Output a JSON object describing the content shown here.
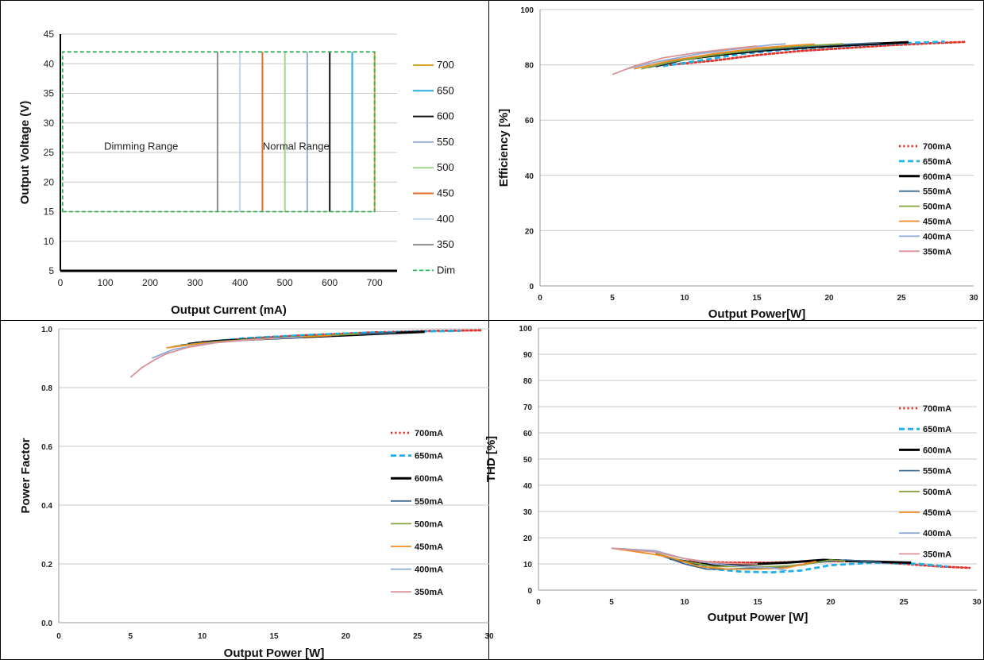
{
  "colors": {
    "700": "#e0342d",
    "650": "#1fb0e6",
    "600": "#000000",
    "550": "#3e6b8e",
    "500": "#86a23b",
    "450": "#f08c24",
    "400": "#8ea9d4",
    "350": "#d99498",
    "dim": "#2fb35a",
    "vline": {
      "700": "#d9a62b",
      "650": "#2aaee0",
      "600": "#111111",
      "550": "#9ab1d4",
      "500": "#9fd68f",
      "450": "#e2702a",
      "400": "#bcd6ee",
      "350": "#8c8c8c"
    }
  },
  "chart_data": [
    {
      "type": "line",
      "xlabel": "Output Current  (mA)",
      "ylabel": "Output Voltage  (V)",
      "xlim": [
        0,
        750
      ],
      "ylim": [
        5,
        45
      ],
      "xticks": [
        "0",
        "100",
        "200",
        "300",
        "400",
        "500",
        "600",
        "700"
      ],
      "yticks": [
        "5",
        "10",
        "15",
        "20",
        "25",
        "30",
        "35",
        "40",
        "45"
      ],
      "grid": "horizontal",
      "legend": "right",
      "regions": [
        {
          "label": "Dimming Range",
          "x": 180,
          "y": 25.5
        },
        {
          "label": "Normal Range",
          "x": 525,
          "y": 25.5
        }
      ],
      "series": [
        {
          "name": "700",
          "key": "700",
          "x": [
            700,
            700
          ],
          "y": [
            15,
            42
          ]
        },
        {
          "name": "650",
          "key": "650",
          "x": [
            650,
            650
          ],
          "y": [
            15,
            42
          ]
        },
        {
          "name": "600",
          "key": "600",
          "x": [
            600,
            600
          ],
          "y": [
            15,
            42
          ]
        },
        {
          "name": "550",
          "key": "550",
          "x": [
            550,
            550
          ],
          "y": [
            15,
            42
          ]
        },
        {
          "name": "500",
          "key": "500",
          "x": [
            500,
            500
          ],
          "y": [
            15,
            42
          ]
        },
        {
          "name": "450",
          "key": "450",
          "x": [
            450,
            450
          ],
          "y": [
            15,
            42
          ]
        },
        {
          "name": "400",
          "key": "400",
          "x": [
            400,
            400
          ],
          "y": [
            15,
            42
          ]
        },
        {
          "name": "350",
          "key": "350",
          "x": [
            350,
            350
          ],
          "y": [
            15,
            42
          ]
        },
        {
          "name": "Dim",
          "key": "dim",
          "dash": "dash",
          "x": [
            5,
            700,
            700,
            5,
            5
          ],
          "y": [
            15,
            15,
            42,
            42,
            15
          ]
        }
      ]
    },
    {
      "type": "line",
      "xlabel": "Output Power[W]",
      "ylabel": "Efficiency [%]",
      "xlim": [
        0,
        30
      ],
      "ylim": [
        0,
        100
      ],
      "xticks": [
        "0",
        "5",
        "10",
        "15",
        "20",
        "25",
        "30"
      ],
      "yticks": [
        "0",
        "20",
        "40",
        "60",
        "80",
        "100"
      ],
      "grid": "horizontal",
      "legend": "right",
      "series": [
        {
          "name": "700mA",
          "key": "700",
          "dash": "dot",
          "x": [
            9,
            12,
            15,
            18,
            21,
            24,
            27,
            29.5
          ],
          "y": [
            80,
            81.5,
            83.5,
            85,
            86,
            87,
            87.8,
            88.3
          ]
        },
        {
          "name": "650mA",
          "key": "650",
          "dash": "dash",
          "x": [
            8.5,
            11,
            14,
            17,
            20,
            23,
            26,
            28
          ],
          "y": [
            79.5,
            81.5,
            84,
            85.5,
            86.5,
            87.3,
            88,
            88.4
          ]
        },
        {
          "name": "600mA",
          "key": "600",
          "dash": "solid",
          "x": [
            8,
            10,
            13,
            16,
            19,
            22,
            25.5
          ],
          "y": [
            79.5,
            82,
            84,
            85.5,
            86.5,
            87.3,
            88.2
          ]
        },
        {
          "name": "550mA",
          "key": "550",
          "dash": "solid",
          "x": [
            7.5,
            10,
            13,
            16,
            19,
            21.5,
            23.5
          ],
          "y": [
            79,
            82,
            84.2,
            85.7,
            86.8,
            87.5,
            88
          ]
        },
        {
          "name": "500mA",
          "key": "500",
          "dash": "solid",
          "x": [
            7,
            9,
            12,
            15,
            18,
            21
          ],
          "y": [
            78.5,
            81,
            83.5,
            85.5,
            86.8,
            87.6
          ]
        },
        {
          "name": "450mA",
          "key": "450",
          "dash": "solid",
          "x": [
            6.5,
            9,
            12,
            15,
            17.5,
            19
          ],
          "y": [
            78.5,
            81.5,
            84,
            86,
            87,
            87.5
          ]
        },
        {
          "name": "400mA",
          "key": "400",
          "dash": "solid",
          "x": [
            6,
            8,
            11,
            14,
            16,
            17
          ],
          "y": [
            78.5,
            81,
            84,
            86,
            87.2,
            87.6
          ]
        },
        {
          "name": "350mA",
          "key": "350",
          "dash": "solid",
          "x": [
            5,
            6.5,
            8.5,
            11,
            13.5,
            15
          ],
          "y": [
            76.5,
            79.5,
            82.5,
            84.5,
            86,
            86.8
          ]
        }
      ]
    },
    {
      "type": "line",
      "xlabel": "Output Power [W]",
      "ylabel": "Power Factor",
      "xlim": [
        0,
        30
      ],
      "ylim": [
        0.0,
        1.0
      ],
      "xticks": [
        "0",
        "5",
        "10",
        "15",
        "20",
        "25",
        "30"
      ],
      "yticks": [
        "0.0",
        "0.2",
        "0.4",
        "0.6",
        "0.8",
        "1.0"
      ],
      "grid": "horizontal",
      "legend": "right",
      "series": [
        {
          "name": "700mA",
          "key": "700",
          "dash": "dot",
          "x": [
            10,
            14,
            18,
            22,
            26,
            29.5
          ],
          "y": [
            0.955,
            0.97,
            0.98,
            0.988,
            0.993,
            0.995
          ]
        },
        {
          "name": "650mA",
          "key": "650",
          "dash": "dash",
          "x": [
            9.5,
            13,
            17,
            21,
            25,
            28
          ],
          "y": [
            0.952,
            0.968,
            0.978,
            0.986,
            0.991,
            0.993
          ]
        },
        {
          "name": "600mA",
          "key": "600",
          "dash": "solid",
          "x": [
            9,
            11,
            14,
            17,
            20,
            23,
            25.5
          ],
          "y": [
            0.948,
            0.958,
            0.965,
            0.972,
            0.978,
            0.985,
            0.99
          ]
        },
        {
          "name": "550mA",
          "key": "550",
          "dash": "solid",
          "x": [
            8.5,
            11,
            14,
            17,
            20,
            23.5
          ],
          "y": [
            0.945,
            0.957,
            0.966,
            0.973,
            0.98,
            0.987
          ]
        },
        {
          "name": "500mA",
          "key": "500",
          "dash": "solid",
          "x": [
            8,
            10,
            13,
            16,
            19,
            21
          ],
          "y": [
            0.94,
            0.952,
            0.963,
            0.971,
            0.978,
            0.983
          ]
        },
        {
          "name": "450mA",
          "key": "450",
          "dash": "solid",
          "x": [
            7.5,
            10,
            13,
            16,
            19
          ],
          "y": [
            0.935,
            0.951,
            0.962,
            0.97,
            0.977
          ]
        },
        {
          "name": "400mA",
          "key": "400",
          "dash": "solid",
          "x": [
            6.5,
            8,
            10.5,
            13.5,
            17
          ],
          "y": [
            0.9,
            0.93,
            0.951,
            0.963,
            0.972
          ]
        },
        {
          "name": "350mA",
          "key": "350",
          "dash": "solid",
          "x": [
            5,
            5.8,
            6.7,
            7.5,
            9,
            11,
            13,
            15
          ],
          "y": [
            0.835,
            0.868,
            0.895,
            0.915,
            0.937,
            0.953,
            0.962,
            0.968
          ]
        }
      ]
    },
    {
      "type": "line",
      "xlabel": "Output Power [W]",
      "ylabel": "THD [%]",
      "xlim": [
        0,
        30
      ],
      "ylim": [
        0,
        100
      ],
      "xticks": [
        "0",
        "5",
        "10",
        "15",
        "20",
        "25",
        "30"
      ],
      "yticks": [
        "0",
        "10",
        "20",
        "30",
        "40",
        "50",
        "60",
        "70",
        "80",
        "90",
        "100"
      ],
      "grid": "horizontal",
      "legend": "right",
      "series": [
        {
          "name": "700mA",
          "key": "700",
          "dash": "dot",
          "x": [
            10,
            13,
            16,
            19,
            22,
            25,
            27.5,
            29.5
          ],
          "y": [
            11,
            10.5,
            10.5,
            11,
            11,
            10,
            9,
            8.5
          ]
        },
        {
          "name": "650mA",
          "key": "650",
          "dash": "dash",
          "x": [
            10,
            12,
            14,
            16,
            18,
            20,
            23,
            26,
            28
          ],
          "y": [
            11,
            8,
            7,
            6.8,
            7.5,
            9.5,
            10.5,
            10,
            9
          ]
        },
        {
          "name": "600mA",
          "key": "600",
          "dash": "solid",
          "x": [
            9,
            11,
            13,
            15,
            17,
            19.5,
            22,
            25.5
          ],
          "y": [
            12,
            10,
            9.5,
            10,
            10.5,
            11.5,
            11,
            10.5
          ]
        },
        {
          "name": "550mA",
          "key": "550",
          "dash": "solid",
          "x": [
            8.5,
            10,
            11.5,
            13,
            15,
            17,
            19,
            21,
            23.5
          ],
          "y": [
            13,
            10,
            8,
            8,
            8.5,
            9,
            10.5,
            11.5,
            10.5
          ]
        },
        {
          "name": "500mA",
          "key": "500",
          "dash": "solid",
          "x": [
            8,
            10,
            12,
            14,
            16,
            18,
            20,
            21
          ],
          "y": [
            14,
            11,
            9,
            9,
            9,
            9.5,
            11.5,
            11
          ]
        },
        {
          "name": "450mA",
          "key": "450",
          "dash": "solid",
          "x": [
            5,
            7.5,
            9,
            11,
            13,
            15,
            17,
            19
          ],
          "y": [
            16,
            14,
            12.5,
            9,
            8,
            8,
            8.5,
            11
          ]
        },
        {
          "name": "400mA",
          "key": "400",
          "dash": "solid",
          "x": [
            5,
            8,
            10,
            12,
            14,
            16,
            17
          ],
          "y": [
            16,
            15,
            12,
            10,
            9,
            8.5,
            7.5
          ]
        },
        {
          "name": "350mA",
          "key": "350",
          "dash": "solid",
          "x": [
            5,
            8,
            10,
            12,
            14,
            15
          ],
          "y": [
            16,
            14.5,
            12,
            10.5,
            10,
            10
          ]
        }
      ]
    }
  ]
}
